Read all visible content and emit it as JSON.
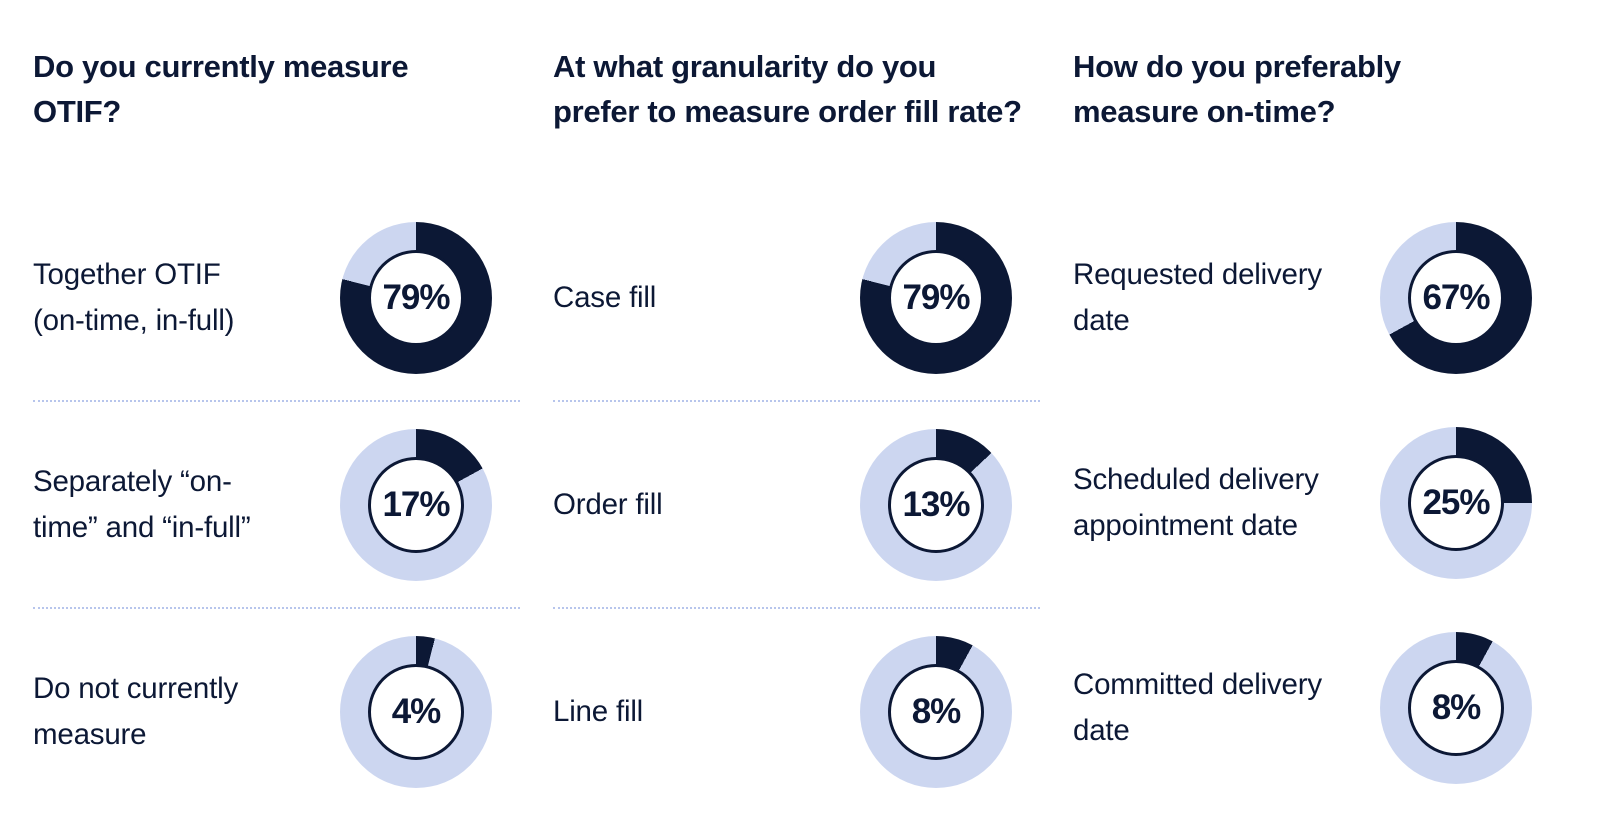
{
  "colors": {
    "dark": "#0c1835",
    "light": "#ccd6f0",
    "separator": "#b7c5ec",
    "background": "#ffffff"
  },
  "columns": [
    {
      "question": "Do you currently measure OTIF?",
      "items": [
        {
          "label": "Together OTIF (on-time, in-full)",
          "value": 79,
          "value_label": "79%"
        },
        {
          "label": "Separately “on-time” and “in-full”",
          "value": 17,
          "value_label": "17%"
        },
        {
          "label": "Do not currently measure",
          "value": 4,
          "value_label": "4%"
        }
      ]
    },
    {
      "question": "At what granularity do you prefer to measure order fill rate?",
      "items": [
        {
          "label": "Case fill",
          "value": 79,
          "value_label": "79%"
        },
        {
          "label": "Order fill",
          "value": 13,
          "value_label": "13%"
        },
        {
          "label": "Line fill",
          "value": 8,
          "value_label": "8%"
        }
      ]
    },
    {
      "question": "How do you preferably measure on-time?",
      "items": [
        {
          "label": "Requested delivery date",
          "value": 67,
          "value_label": "67%"
        },
        {
          "label": "Scheduled delivery appointment date",
          "value": 25,
          "value_label": "25%"
        },
        {
          "label": "Committed delivery date",
          "value": 8,
          "value_label": "8%"
        }
      ]
    }
  ],
  "chart_data": [
    {
      "type": "pie",
      "style": "donut-single-value",
      "title": "Do you currently measure OTIF?",
      "categories": [
        "Together OTIF (on-time, in-full)",
        "Separately “on-time” and “in-full”",
        "Do not currently measure"
      ],
      "values": [
        79,
        17,
        4
      ],
      "unit": "%",
      "fill_color": "#0c1835",
      "remainder_color": "#ccd6f0",
      "start_angle": "12-oclock",
      "direction": "clockwise"
    },
    {
      "type": "pie",
      "style": "donut-single-value",
      "title": "At what granularity do you prefer to measure order fill rate?",
      "categories": [
        "Case fill",
        "Order fill",
        "Line fill"
      ],
      "values": [
        79,
        13,
        8
      ],
      "unit": "%",
      "fill_color": "#0c1835",
      "remainder_color": "#ccd6f0",
      "start_angle": "12-oclock",
      "direction": "clockwise"
    },
    {
      "type": "pie",
      "style": "donut-single-value",
      "title": "How do you preferably measure on-time?",
      "categories": [
        "Requested delivery date",
        "Scheduled delivery appointment date",
        "Committed delivery date"
      ],
      "values": [
        67,
        25,
        8
      ],
      "unit": "%",
      "fill_color": "#0c1835",
      "remainder_color": "#ccd6f0",
      "start_angle": "12-oclock",
      "direction": "clockwise"
    }
  ]
}
